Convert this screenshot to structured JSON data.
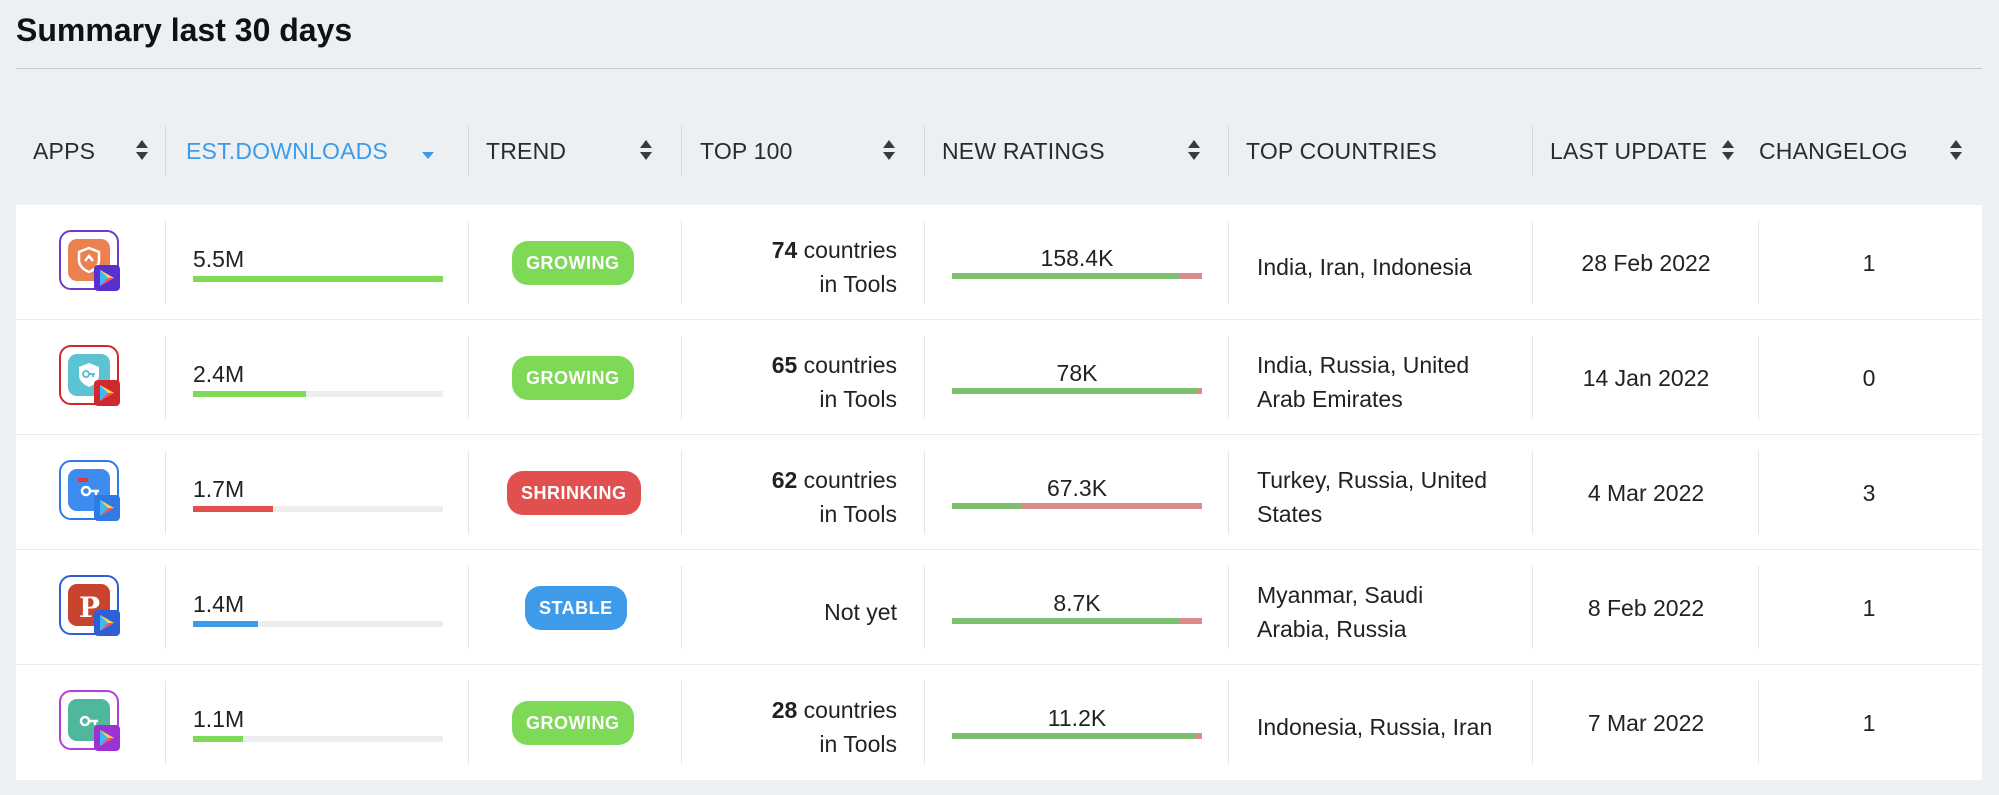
{
  "page": {
    "title": "Summary last 30 days"
  },
  "columns": [
    {
      "key": "apps",
      "label": "APPS",
      "sortable": true,
      "active": false
    },
    {
      "key": "downloads",
      "label": "EST.DOWNLOADS",
      "sortable": true,
      "active": true
    },
    {
      "key": "trend",
      "label": "TREND",
      "sortable": true,
      "active": false
    },
    {
      "key": "top100",
      "label": "TOP 100",
      "sortable": true,
      "active": false
    },
    {
      "key": "ratings",
      "label": "NEW RATINGS",
      "sortable": true,
      "active": false
    },
    {
      "key": "countries",
      "label": "TOP COUNTRIES",
      "sortable": false,
      "active": false
    },
    {
      "key": "update",
      "label": "LAST UPDATE",
      "sortable": true,
      "active": false
    },
    {
      "key": "changelog",
      "label": "CHANGELOG",
      "sortable": true,
      "active": false
    }
  ],
  "colors": {
    "accent": "#3d9be9",
    "growing": "#7ed957",
    "shrinking": "#e14f4f",
    "stable": "#3d9be9",
    "ratings_positive": "#7cc06f",
    "ratings_negative": "#de8a8a"
  },
  "rows": [
    {
      "app_icon": "orange-shield-app-icon",
      "downloads": "5.5M",
      "downloads_share": 1.0,
      "downloads_color": "#7ed957",
      "trend": "GROWING",
      "trend_color": "#7ed957",
      "top100_count": "74",
      "top100_text": " countries",
      "top100_category": "in Tools",
      "ratings": "158.4K",
      "ratings_positive_share": 0.91,
      "countries": "India, Iran, Indonesia",
      "last_update": "28 Feb 2022",
      "changelog": "1"
    },
    {
      "app_icon": "teal-key-app-icon",
      "downloads": "2.4M",
      "downloads_share": 0.45,
      "downloads_color": "#7ed957",
      "trend": "GROWING",
      "trend_color": "#7ed957",
      "top100_count": "65",
      "top100_text": " countries",
      "top100_category": "in Tools",
      "ratings": "78K",
      "ratings_positive_share": 0.98,
      "countries": "India, Russia, United Arab Emirates",
      "last_update": "14 Jan 2022",
      "changelog": "0"
    },
    {
      "app_icon": "blue-key-app-icon",
      "downloads": "1.7M",
      "downloads_share": 0.32,
      "downloads_color": "#e14f4f",
      "trend": "SHRINKING",
      "trend_color": "#e14f4f",
      "top100_count": "62",
      "top100_text": " countries",
      "top100_category": "in Tools",
      "ratings": "67.3K",
      "ratings_positive_share": 0.28,
      "countries": "Turkey, Russia, United States",
      "last_update": "4 Mar 2022",
      "changelog": "3"
    },
    {
      "app_icon": "red-p-app-icon",
      "downloads": "1.4M",
      "downloads_share": 0.26,
      "downloads_color": "#3d9be9",
      "trend": "STABLE",
      "trend_color": "#3d9be9",
      "top100_none": "Not yet",
      "ratings": "8.7K",
      "ratings_positive_share": 0.91,
      "countries": "Myanmar, Saudi Arabia, Russia",
      "last_update": "8 Feb 2022",
      "changelog": "1"
    },
    {
      "app_icon": "green-key-app-icon",
      "downloads": "1.1M",
      "downloads_share": 0.2,
      "downloads_color": "#7ed957",
      "trend": "GROWING",
      "trend_color": "#7ed957",
      "top100_count": "28",
      "top100_text": " countries",
      "top100_category": "in Tools",
      "ratings": "11.2K",
      "ratings_positive_share": 0.97,
      "countries": "Indonesia, Russia, Iran",
      "last_update": "7 Mar 2022",
      "changelog": "1"
    }
  ]
}
